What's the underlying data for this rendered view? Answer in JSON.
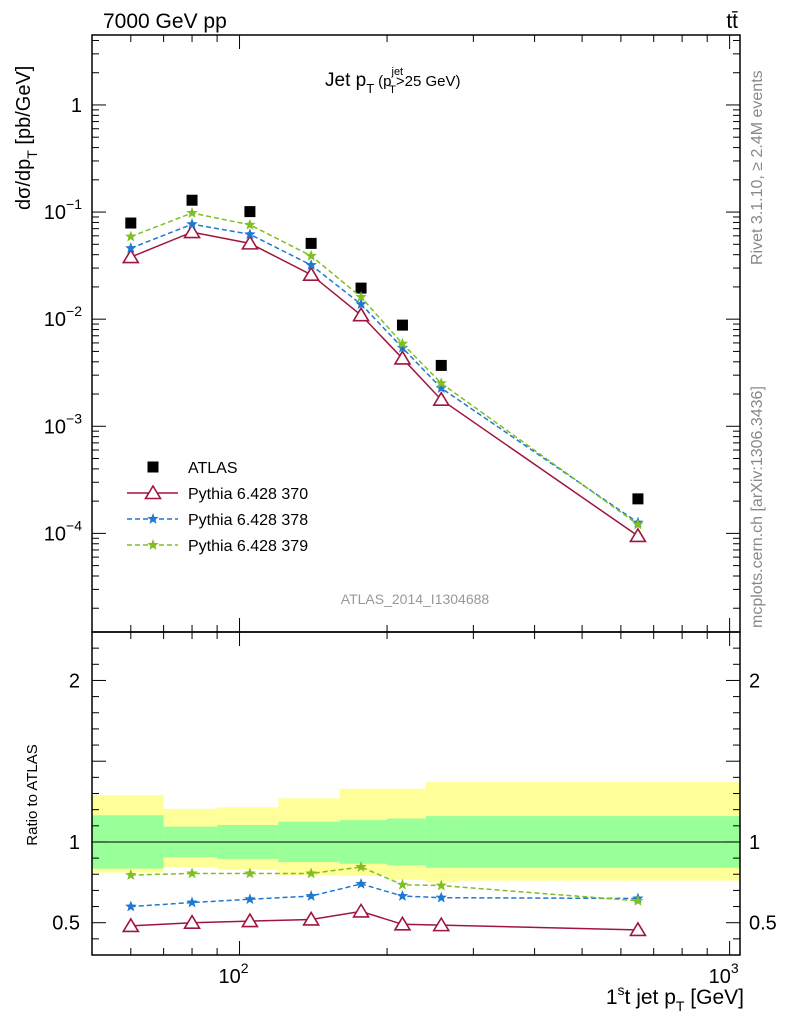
{
  "header": {
    "left_label": "7000 GeV pp",
    "right_label": "tt̄"
  },
  "side_labels": {
    "rivet": "Rivet 3.1.10, ≥ 2.4M events",
    "mcplots": "mcplots.cern.ch [arXiv:1306.3436]"
  },
  "chart_data": [
    {
      "type": "line",
      "name": "main",
      "title": {
        "main": "Jet p",
        "main_sub": "T",
        "paren_open": "(p",
        "paren_sup": "jet",
        "paren_sub": "T",
        "paren_tail": ">25 GeV)"
      },
      "ylabel": {
        "prefix": "dσ/dp",
        "sub": "T",
        "suffix": " [pb/GeV]"
      },
      "analysis_label": "ATLAS_2014_I1304688",
      "xscale": "log",
      "yscale": "log",
      "xlim": [
        50,
        1050
      ],
      "ylim": [
        1.2e-05,
        4.5
      ],
      "y_tick_labels": [
        {
          "value": 0.0001,
          "base": "10",
          "exp": "−4"
        },
        {
          "value": 0.001,
          "base": "10",
          "exp": "−3"
        },
        {
          "value": 0.01,
          "base": "10",
          "exp": "−2"
        },
        {
          "value": 0.1,
          "base": "10",
          "exp": "−1"
        },
        {
          "value": 1,
          "base": "1",
          "exp": ""
        }
      ],
      "legend_position": "bottom-left",
      "series": [
        {
          "name": "ATLAS",
          "marker": "square",
          "color": "#000000",
          "line": "none",
          "x": [
            60,
            80,
            105,
            140,
            177,
            215,
            258,
            650
          ],
          "y": [
            0.079,
            0.129,
            0.101,
            0.051,
            0.0195,
            0.0088,
            0.0037,
            0.00021
          ]
        },
        {
          "name": "Pythia 6.428 370",
          "marker": "open-triangle",
          "color": "#a0153e",
          "line": "solid",
          "x": [
            60,
            80,
            105,
            140,
            177,
            215,
            258,
            650
          ],
          "y": [
            0.038,
            0.065,
            0.051,
            0.026,
            0.0109,
            0.0043,
            0.00177,
            9.47e-05
          ]
        },
        {
          "name": "Pythia 6.428 378",
          "marker": "star",
          "color": "#1f78d1",
          "line": "dashed",
          "x": [
            60,
            80,
            105,
            140,
            177,
            215,
            258,
            650
          ],
          "y": [
            0.046,
            0.077,
            0.062,
            0.032,
            0.0138,
            0.0054,
            0.00227,
            0.000126
          ]
        },
        {
          "name": "Pythia 6.428 379",
          "marker": "star",
          "color": "#7fbf1f",
          "line": "dashed",
          "x": [
            60,
            80,
            105,
            140,
            177,
            215,
            258,
            650
          ],
          "y": [
            0.059,
            0.098,
            0.076,
            0.039,
            0.0161,
            0.0059,
            0.00252,
            0.000121
          ]
        }
      ]
    },
    {
      "type": "line",
      "name": "ratio",
      "ylabel": "Ratio to ATLAS",
      "xlabel": {
        "prefix": "1",
        "sup": "s",
        "mid": "t jet p",
        "sub": "T",
        "suffix": " [GeV]"
      },
      "xscale": "log",
      "xlim": [
        50,
        1050
      ],
      "ylim": [
        0.3,
        2.3
      ],
      "y_ticks": [
        0.5,
        1,
        2
      ],
      "y_tick_labels": [
        "0.5",
        "1",
        "2"
      ],
      "x_tick_labels": [
        {
          "value": 100,
          "base": "10",
          "exp": "2"
        },
        {
          "value": 1000,
          "base": "10",
          "exp": "3"
        }
      ],
      "uncertainty_bands": {
        "edges": [
          50,
          70,
          90,
          120,
          160,
          200,
          240,
          280,
          1050
        ],
        "inner": [
          [
            0.835,
            1.165
          ],
          [
            0.905,
            1.095
          ],
          [
            0.895,
            1.105
          ],
          [
            0.875,
            1.125
          ],
          [
            0.865,
            1.135
          ],
          [
            0.855,
            1.145
          ],
          [
            0.84,
            1.16
          ],
          [
            0.84,
            1.16
          ]
        ],
        "outer": [
          [
            0.81,
            1.29
          ],
          [
            0.845,
            1.205
          ],
          [
            0.83,
            1.215
          ],
          [
            0.795,
            1.27
          ],
          [
            0.79,
            1.33
          ],
          [
            0.765,
            1.33
          ],
          [
            0.75,
            1.37
          ],
          [
            0.76,
            1.37
          ]
        ],
        "inner_color": "#99ff99",
        "outer_color": "#ffff99"
      },
      "series": [
        {
          "name": "Pythia 6.428 370",
          "marker": "open-triangle",
          "color": "#a0153e",
          "line": "solid",
          "x": [
            60,
            80,
            105,
            140,
            177,
            215,
            258,
            650
          ],
          "y": [
            0.48,
            0.5,
            0.51,
            0.52,
            0.57,
            0.49,
            0.485,
            0.455
          ]
        },
        {
          "name": "Pythia 6.428 378",
          "marker": "star",
          "color": "#1f78d1",
          "line": "dashed",
          "x": [
            60,
            80,
            105,
            140,
            177,
            215,
            258,
            650
          ],
          "y": [
            0.6,
            0.625,
            0.645,
            0.665,
            0.74,
            0.665,
            0.655,
            0.65
          ]
        },
        {
          "name": "Pythia 6.428 379",
          "marker": "star",
          "color": "#7fbf1f",
          "line": "dashed",
          "x": [
            60,
            80,
            105,
            140,
            177,
            215,
            258,
            650
          ],
          "y": [
            0.795,
            0.805,
            0.805,
            0.805,
            0.845,
            0.735,
            0.73,
            0.635
          ]
        }
      ]
    }
  ]
}
